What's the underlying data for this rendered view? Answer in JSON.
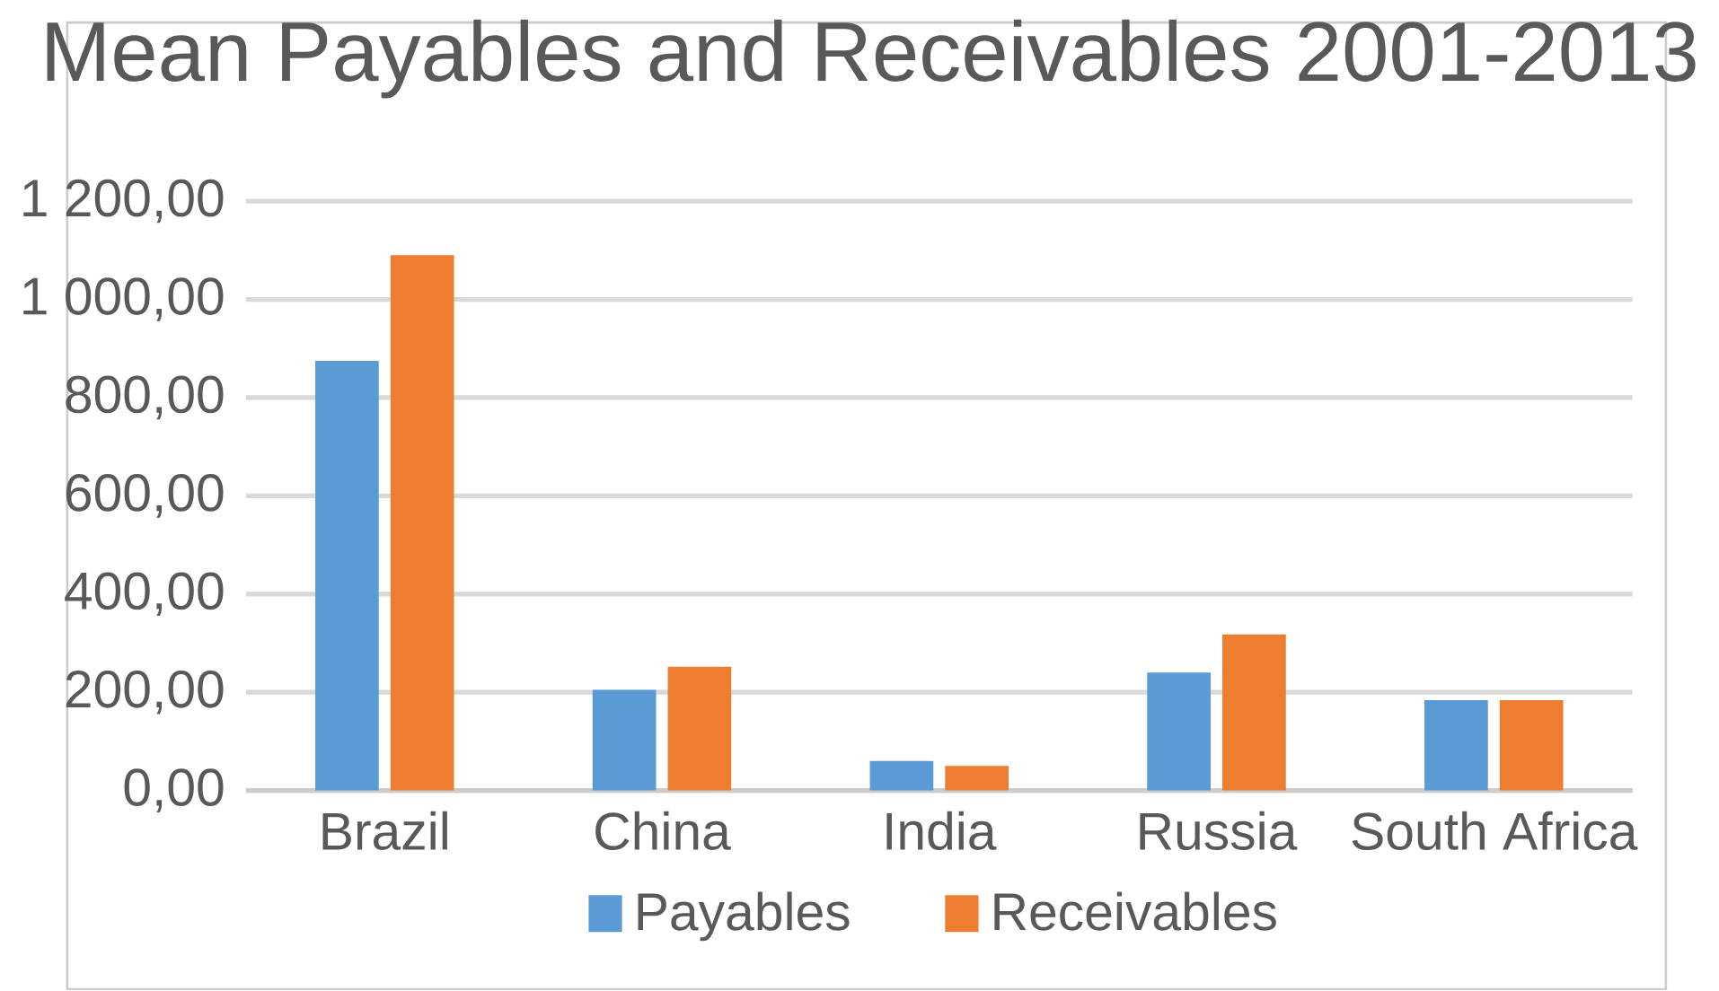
{
  "chart_data": {
    "type": "bar",
    "title": "Mean Payables and Receivables 2001-2013",
    "categories": [
      "Brazil",
      "China",
      "India",
      "Russia",
      "South Africa"
    ],
    "series": [
      {
        "name": "Payables",
        "color": "#5b9bd5",
        "values": [
          875,
          205,
          60,
          240,
          184
        ]
      },
      {
        "name": "Receivables",
        "color": "#ed7d31",
        "values": [
          1090,
          252,
          50,
          318,
          184
        ]
      }
    ],
    "ylim": [
      0,
      1200
    ],
    "yticks": [
      {
        "value": 0,
        "label": "0,00"
      },
      {
        "value": 200,
        "label": "200,00"
      },
      {
        "value": 400,
        "label": "400,00"
      },
      {
        "value": 600,
        "label": "600,00"
      },
      {
        "value": 800,
        "label": "800,00"
      },
      {
        "value": 1000,
        "label": "1 000,00"
      },
      {
        "value": 1200,
        "label": "1 200,00"
      }
    ],
    "grid": "y",
    "legend": "bottom"
  }
}
